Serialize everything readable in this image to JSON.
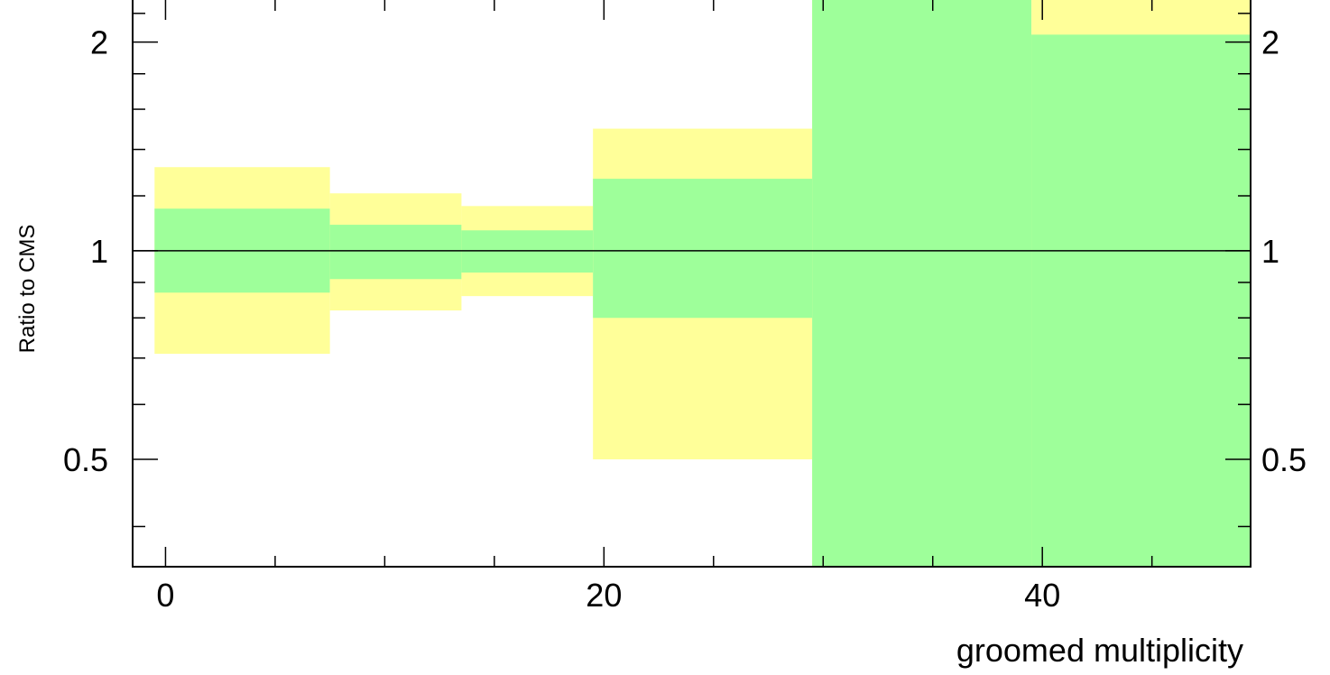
{
  "chart_data": {
    "type": "area",
    "xlabel": "groomed multiplicity",
    "ylabel": "Ratio to CMS",
    "y_scale": "log",
    "xlim": [
      -1.5,
      49.5
    ],
    "ylim": [
      0.35,
      2.3
    ],
    "x_tick_labels": [
      "0",
      "20",
      "40"
    ],
    "y_tick_labels": [
      "0.5",
      "1",
      "2"
    ],
    "reference_line": 1,
    "bins": [
      {
        "x_low": -0.5,
        "x_high": 7.5,
        "inner_low": 0.87,
        "inner_high": 1.15,
        "outer_low": 0.71,
        "outer_high": 1.32
      },
      {
        "x_low": 7.5,
        "x_high": 13.5,
        "inner_low": 0.91,
        "inner_high": 1.09,
        "outer_low": 0.82,
        "outer_high": 1.21
      },
      {
        "x_low": 13.5,
        "x_high": 19.5,
        "inner_low": 0.93,
        "inner_high": 1.07,
        "outer_low": 0.86,
        "outer_high": 1.16
      },
      {
        "x_low": 19.5,
        "x_high": 29.5,
        "inner_low": 0.8,
        "inner_high": 1.27,
        "outer_low": 0.5,
        "outer_high": 1.5
      },
      {
        "x_low": 29.5,
        "x_high": 39.5,
        "inner_low": 0.35,
        "inner_high": 2.3,
        "outer_low": 0.35,
        "outer_high": 2.3
      },
      {
        "x_low": 39.5,
        "x_high": 49.5,
        "inner_low": 0.35,
        "inner_high": 2.05,
        "outer_low": 0.35,
        "outer_high": 2.3
      }
    ],
    "colors": {
      "inner_band": "#9eff9a",
      "outer_band": "#ffff99",
      "axis": "#000000"
    }
  }
}
